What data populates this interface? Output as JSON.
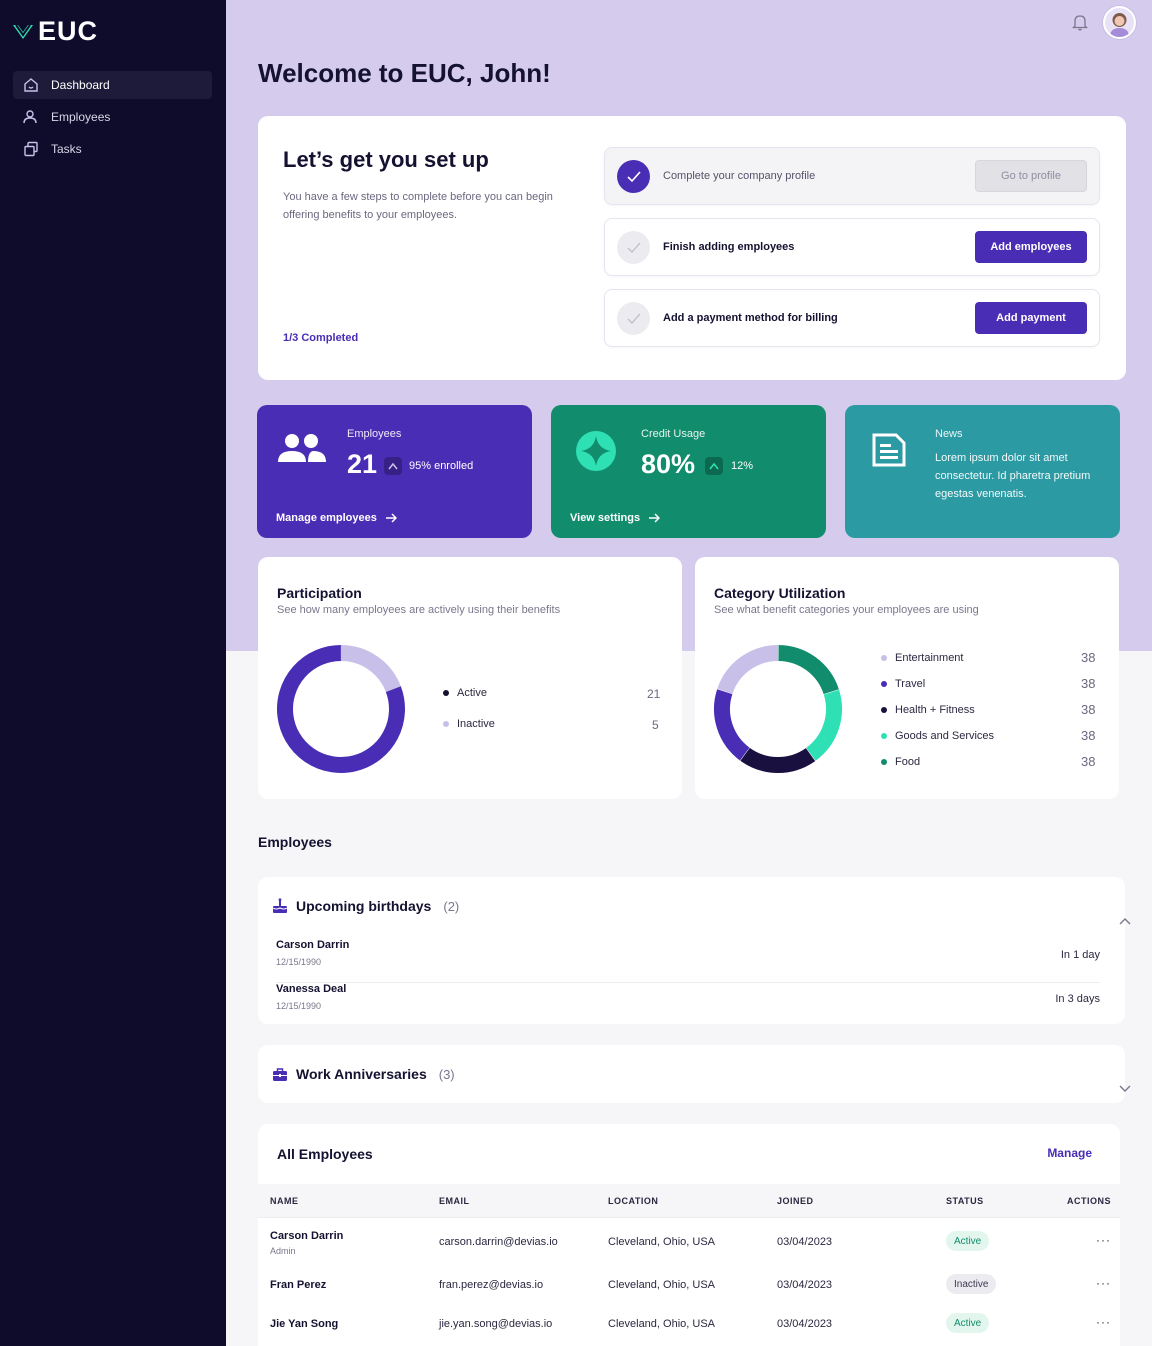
{
  "app": {
    "logo_text": "EUC"
  },
  "sidebar": {
    "items": [
      {
        "label": "Dashboard",
        "icon": "home-icon",
        "active": true
      },
      {
        "label": "Employees",
        "icon": "users-icon",
        "active": false
      },
      {
        "label": "Tasks",
        "icon": "tasks-icon",
        "active": false
      }
    ]
  },
  "header": {
    "welcome": "Welcome to EUC, John!"
  },
  "setup": {
    "title": "Let’s get you set up",
    "description": "You have a few steps to complete before you can begin offering benefits to your employees.",
    "progress": "1/3 Completed",
    "steps": [
      {
        "label": "Complete your company profile",
        "button": "Go to profile",
        "done": true
      },
      {
        "label": "Finish adding employees",
        "button": "Add employees",
        "done": false
      },
      {
        "label": "Add a payment method for billing",
        "button": "Add payment",
        "done": false
      }
    ]
  },
  "stats": {
    "employees": {
      "label": "Employees",
      "value": "21",
      "delta": "95% enrolled",
      "link": "Manage employees"
    },
    "credit": {
      "label": "Credit Usage",
      "value": "80%",
      "delta": "12%",
      "link": "View settings"
    },
    "news": {
      "label": "News",
      "text": "Lorem ipsum dolor sit amet consectetur. Id pharetra pretium egestas venenatis."
    }
  },
  "participation": {
    "title": "Participation",
    "subtitle": "See how many employees are actively using their benefits",
    "legend": [
      {
        "label": "Active",
        "value": "21",
        "color": "#4a2db5"
      },
      {
        "label": "Inactive",
        "value": "5",
        "color": "#c9c0ea"
      }
    ]
  },
  "category": {
    "title": "Category Utilization",
    "subtitle": "See what benefit categories your employees are using",
    "legend": [
      {
        "label": "Entertainment",
        "value": "38",
        "color": "#c9c0ea"
      },
      {
        "label": "Travel",
        "value": "38",
        "color": "#4a2db5"
      },
      {
        "label": "Health + Fitness",
        "value": "38",
        "color": "#1a1040"
      },
      {
        "label": "Goods and Services",
        "value": "38",
        "color": "#2fe0b4"
      },
      {
        "label": "Food",
        "value": "38",
        "color": "#118c6c"
      }
    ]
  },
  "employees_section": {
    "title": "Employees"
  },
  "birthdays": {
    "title": "Upcoming birthdays",
    "count": "(2)",
    "items": [
      {
        "name": "Carson Darrin",
        "date": "12/15/1990",
        "when": "In 1 day"
      },
      {
        "name": "Vanessa Deal",
        "date": "12/15/1990",
        "when": "In 3 days"
      }
    ]
  },
  "anniversaries": {
    "title": "Work Anniversaries",
    "count": "(3)"
  },
  "all_employees": {
    "title": "All Employees",
    "manage": "Manage",
    "columns": [
      "NAME",
      "EMAIL",
      "LOCATION",
      "JOINED",
      "STATUS",
      "ACTIONS"
    ],
    "rows": [
      {
        "name": "Carson Darrin",
        "role": "Admin",
        "email": "carson.darrin@devias.io",
        "location": "Cleveland, Ohio, USA",
        "joined": "03/04/2023",
        "status": "Active"
      },
      {
        "name": "Fran Perez",
        "role": "",
        "email": "fran.perez@devias.io",
        "location": "Cleveland, Ohio, USA",
        "joined": "03/04/2023",
        "status": "Inactive"
      },
      {
        "name": "Jie Yan Song",
        "role": "",
        "email": "jie.yan.song@devias.io",
        "location": "Cleveland, Ohio, USA",
        "joined": "03/04/2023",
        "status": "Active"
      }
    ],
    "actions_glyph": "···"
  }
}
